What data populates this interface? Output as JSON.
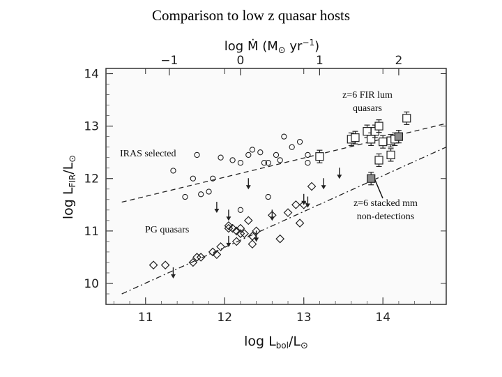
{
  "title": "Comparison to low z quasar hosts",
  "chart_data": {
    "type": "scatter",
    "title": "Comparison to low z quasar hosts",
    "xlabel": {
      "base": "log L",
      "sub": "bol",
      "tail": "/L",
      "sym": "⊙"
    },
    "ylabel": {
      "base": "log L",
      "sub": "FIR",
      "tail": "/L",
      "sym": "⊙"
    },
    "top_xlabel": {
      "pre": "log Ṁ (M",
      "sym": "⊙",
      "mid": " yr",
      "sup": "−1",
      "post": ")"
    },
    "xlim": [
      10.5,
      14.8
    ],
    "ylim": [
      9.6,
      14.1
    ],
    "x_ticks": [
      {
        "value": 11,
        "label": "11"
      },
      {
        "value": 12,
        "label": "12"
      },
      {
        "value": 13,
        "label": "13"
      },
      {
        "value": 14,
        "label": "14"
      }
    ],
    "y_ticks": [
      {
        "value": 10,
        "label": "10"
      },
      {
        "value": 11,
        "label": "11"
      },
      {
        "value": 12,
        "label": "12"
      },
      {
        "value": 13,
        "label": "13"
      },
      {
        "value": 14,
        "label": "14"
      }
    ],
    "top_ticks": [
      {
        "value": 11.3,
        "label": "−1"
      },
      {
        "value": 12.2,
        "label": "0"
      },
      {
        "value": 13.2,
        "label": "1"
      },
      {
        "value": 14.2,
        "label": "2"
      }
    ],
    "series": [
      {
        "name": "IRAS selected",
        "marker": "circle",
        "x": [
          11.35,
          11.6,
          11.5,
          11.7,
          11.85,
          11.95,
          12.1,
          12.2,
          12.3,
          12.45,
          12.5,
          12.55,
          12.65,
          12.75,
          12.85,
          12.95,
          13.05,
          12.55,
          12.2,
          11.8,
          11.65,
          12.35,
          12.7,
          13.05
        ],
        "y": [
          12.15,
          12.0,
          11.65,
          11.7,
          12.0,
          12.4,
          12.35,
          12.3,
          12.45,
          12.5,
          12.3,
          12.3,
          12.45,
          12.8,
          12.6,
          12.7,
          12.45,
          11.65,
          11.4,
          11.75,
          12.45,
          12.55,
          12.35,
          12.3
        ]
      },
      {
        "name": "PG quasars",
        "marker": "diamond",
        "x": [
          11.1,
          11.25,
          11.6,
          11.65,
          11.7,
          11.85,
          11.9,
          11.95,
          12.05,
          12.1,
          12.15,
          12.2,
          12.25,
          12.3,
          12.35,
          12.4,
          12.15,
          12.05,
          12.6,
          12.7,
          12.8,
          12.9,
          12.95,
          13.0,
          13.1,
          12.2,
          12.35
        ],
        "y": [
          10.35,
          10.35,
          10.4,
          10.5,
          10.5,
          10.6,
          10.55,
          10.7,
          11.1,
          11.05,
          11.0,
          11.05,
          10.95,
          11.2,
          10.75,
          11.0,
          10.8,
          11.05,
          11.3,
          10.85,
          11.35,
          11.5,
          11.15,
          11.5,
          11.85,
          10.95,
          10.9
        ]
      },
      {
        "name": "z=6 FIR lum quasars",
        "marker": "square-errorbar",
        "x": [
          13.2,
          13.6,
          13.65,
          13.8,
          13.85,
          13.9,
          13.95,
          14.1,
          14.1,
          14.15,
          14.3,
          14.0,
          13.95
        ],
        "y": [
          12.42,
          12.75,
          12.78,
          12.9,
          12.75,
          12.9,
          13.0,
          12.45,
          12.72,
          12.75,
          13.15,
          12.7,
          12.35
        ]
      },
      {
        "name": "z=6 stacked mm non-detections",
        "marker": "filled-square-errorbar",
        "x": [
          13.85,
          14.2
        ],
        "y": [
          12.0,
          12.8
        ]
      },
      {
        "name": "upper limits",
        "marker": "down-arrow",
        "x": [
          11.35,
          12.3,
          11.9,
          12.05,
          12.6,
          13.45,
          13.0,
          13.05,
          13.25,
          12.4,
          12.05
        ],
        "y": [
          10.2,
          11.9,
          11.45,
          11.3,
          11.3,
          12.1,
          11.6,
          11.55,
          11.9,
          10.9,
          10.8
        ]
      }
    ],
    "lines": [
      {
        "name": "IRAS fit",
        "style": "dashed",
        "x": [
          10.7,
          14.8
        ],
        "y": [
          11.55,
          13.05
        ]
      },
      {
        "name": "PG fit",
        "style": "dash-dot",
        "x": [
          10.7,
          14.8
        ],
        "y": [
          9.8,
          12.6
        ]
      }
    ],
    "annotations": [
      {
        "id": "fir",
        "lines": [
          "z=6 FIR lum",
          "quasars"
        ]
      },
      {
        "id": "iras",
        "lines": [
          "IRAS selected"
        ]
      },
      {
        "id": "pg",
        "lines": [
          "PG quasars"
        ]
      },
      {
        "id": "stack",
        "lines": [
          "z=6 stacked mm",
          "non-detections"
        ]
      }
    ]
  }
}
